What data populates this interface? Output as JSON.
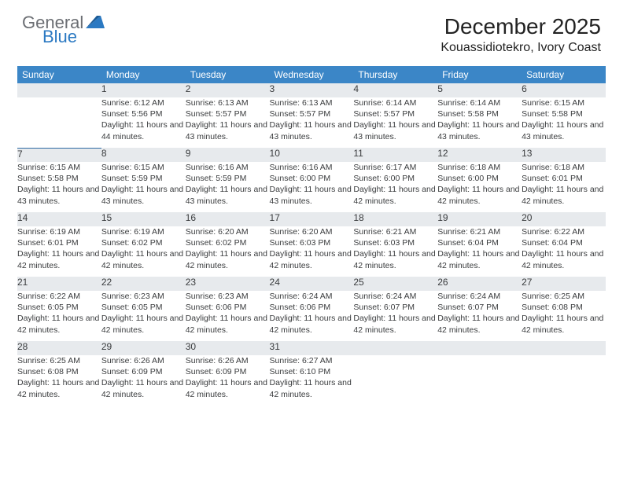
{
  "logo": {
    "text1": "General",
    "text2": "Blue"
  },
  "header": {
    "title": "December 2025",
    "location": "Kouassidiotekro, Ivory Coast"
  },
  "colors": {
    "header_bg": "#3b86c7",
    "daynum_bg": "#e7eaed",
    "row_divider": "#2d6aa3",
    "logo_gray": "#6b6e73",
    "logo_blue": "#2b79c2"
  },
  "weekday_labels": [
    "Sunday",
    "Monday",
    "Tuesday",
    "Wednesday",
    "Thursday",
    "Friday",
    "Saturday"
  ],
  "weeks": [
    {
      "daynums": [
        "",
        "1",
        "2",
        "3",
        "4",
        "5",
        "6"
      ],
      "details": [
        null,
        {
          "sunrise": "Sunrise: 6:12 AM",
          "sunset": "Sunset: 5:56 PM",
          "daylight": "Daylight: 11 hours and 44 minutes."
        },
        {
          "sunrise": "Sunrise: 6:13 AM",
          "sunset": "Sunset: 5:57 PM",
          "daylight": "Daylight: 11 hours and 43 minutes."
        },
        {
          "sunrise": "Sunrise: 6:13 AM",
          "sunset": "Sunset: 5:57 PM",
          "daylight": "Daylight: 11 hours and 43 minutes."
        },
        {
          "sunrise": "Sunrise: 6:14 AM",
          "sunset": "Sunset: 5:57 PM",
          "daylight": "Daylight: 11 hours and 43 minutes."
        },
        {
          "sunrise": "Sunrise: 6:14 AM",
          "sunset": "Sunset: 5:58 PM",
          "daylight": "Daylight: 11 hours and 43 minutes."
        },
        {
          "sunrise": "Sunrise: 6:15 AM",
          "sunset": "Sunset: 5:58 PM",
          "daylight": "Daylight: 11 hours and 43 minutes."
        }
      ]
    },
    {
      "daynums": [
        "7",
        "8",
        "9",
        "10",
        "11",
        "12",
        "13"
      ],
      "details": [
        {
          "sunrise": "Sunrise: 6:15 AM",
          "sunset": "Sunset: 5:58 PM",
          "daylight": "Daylight: 11 hours and 43 minutes."
        },
        {
          "sunrise": "Sunrise: 6:15 AM",
          "sunset": "Sunset: 5:59 PM",
          "daylight": "Daylight: 11 hours and 43 minutes."
        },
        {
          "sunrise": "Sunrise: 6:16 AM",
          "sunset": "Sunset: 5:59 PM",
          "daylight": "Daylight: 11 hours and 43 minutes."
        },
        {
          "sunrise": "Sunrise: 6:16 AM",
          "sunset": "Sunset: 6:00 PM",
          "daylight": "Daylight: 11 hours and 43 minutes."
        },
        {
          "sunrise": "Sunrise: 6:17 AM",
          "sunset": "Sunset: 6:00 PM",
          "daylight": "Daylight: 11 hours and 42 minutes."
        },
        {
          "sunrise": "Sunrise: 6:18 AM",
          "sunset": "Sunset: 6:00 PM",
          "daylight": "Daylight: 11 hours and 42 minutes."
        },
        {
          "sunrise": "Sunrise: 6:18 AM",
          "sunset": "Sunset: 6:01 PM",
          "daylight": "Daylight: 11 hours and 42 minutes."
        }
      ]
    },
    {
      "daynums": [
        "14",
        "15",
        "16",
        "17",
        "18",
        "19",
        "20"
      ],
      "details": [
        {
          "sunrise": "Sunrise: 6:19 AM",
          "sunset": "Sunset: 6:01 PM",
          "daylight": "Daylight: 11 hours and 42 minutes."
        },
        {
          "sunrise": "Sunrise: 6:19 AM",
          "sunset": "Sunset: 6:02 PM",
          "daylight": "Daylight: 11 hours and 42 minutes."
        },
        {
          "sunrise": "Sunrise: 6:20 AM",
          "sunset": "Sunset: 6:02 PM",
          "daylight": "Daylight: 11 hours and 42 minutes."
        },
        {
          "sunrise": "Sunrise: 6:20 AM",
          "sunset": "Sunset: 6:03 PM",
          "daylight": "Daylight: 11 hours and 42 minutes."
        },
        {
          "sunrise": "Sunrise: 6:21 AM",
          "sunset": "Sunset: 6:03 PM",
          "daylight": "Daylight: 11 hours and 42 minutes."
        },
        {
          "sunrise": "Sunrise: 6:21 AM",
          "sunset": "Sunset: 6:04 PM",
          "daylight": "Daylight: 11 hours and 42 minutes."
        },
        {
          "sunrise": "Sunrise: 6:22 AM",
          "sunset": "Sunset: 6:04 PM",
          "daylight": "Daylight: 11 hours and 42 minutes."
        }
      ]
    },
    {
      "daynums": [
        "21",
        "22",
        "23",
        "24",
        "25",
        "26",
        "27"
      ],
      "details": [
        {
          "sunrise": "Sunrise: 6:22 AM",
          "sunset": "Sunset: 6:05 PM",
          "daylight": "Daylight: 11 hours and 42 minutes."
        },
        {
          "sunrise": "Sunrise: 6:23 AM",
          "sunset": "Sunset: 6:05 PM",
          "daylight": "Daylight: 11 hours and 42 minutes."
        },
        {
          "sunrise": "Sunrise: 6:23 AM",
          "sunset": "Sunset: 6:06 PM",
          "daylight": "Daylight: 11 hours and 42 minutes."
        },
        {
          "sunrise": "Sunrise: 6:24 AM",
          "sunset": "Sunset: 6:06 PM",
          "daylight": "Daylight: 11 hours and 42 minutes."
        },
        {
          "sunrise": "Sunrise: 6:24 AM",
          "sunset": "Sunset: 6:07 PM",
          "daylight": "Daylight: 11 hours and 42 minutes."
        },
        {
          "sunrise": "Sunrise: 6:24 AM",
          "sunset": "Sunset: 6:07 PM",
          "daylight": "Daylight: 11 hours and 42 minutes."
        },
        {
          "sunrise": "Sunrise: 6:25 AM",
          "sunset": "Sunset: 6:08 PM",
          "daylight": "Daylight: 11 hours and 42 minutes."
        }
      ]
    },
    {
      "daynums": [
        "28",
        "29",
        "30",
        "31",
        "",
        "",
        ""
      ],
      "details": [
        {
          "sunrise": "Sunrise: 6:25 AM",
          "sunset": "Sunset: 6:08 PM",
          "daylight": "Daylight: 11 hours and 42 minutes."
        },
        {
          "sunrise": "Sunrise: 6:26 AM",
          "sunset": "Sunset: 6:09 PM",
          "daylight": "Daylight: 11 hours and 42 minutes."
        },
        {
          "sunrise": "Sunrise: 6:26 AM",
          "sunset": "Sunset: 6:09 PM",
          "daylight": "Daylight: 11 hours and 42 minutes."
        },
        {
          "sunrise": "Sunrise: 6:27 AM",
          "sunset": "Sunset: 6:10 PM",
          "daylight": "Daylight: 11 hours and 42 minutes."
        },
        null,
        null,
        null
      ]
    }
  ]
}
